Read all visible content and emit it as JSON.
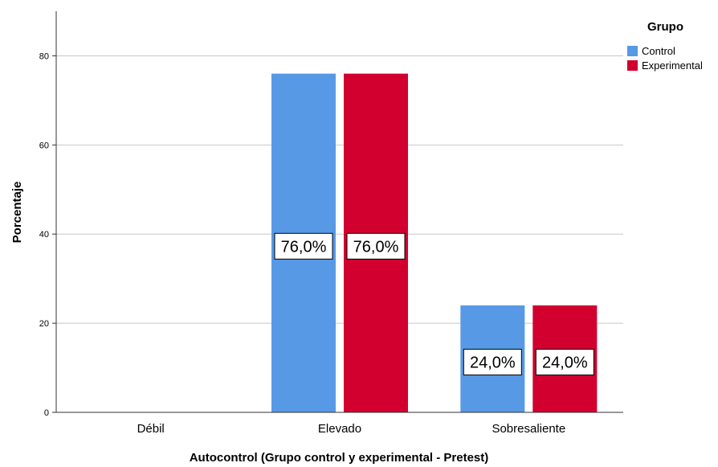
{
  "chart_data": {
    "type": "bar",
    "xlabel": "Autocontrol (Grupo control y experimental - Pretest)",
    "ylabel": "Porcentaje",
    "categories": [
      "Débil",
      "Elevado",
      "Sobresaliente"
    ],
    "series": [
      {
        "name": "Control",
        "color": "#5799e5",
        "values": [
          0,
          76.0,
          24.0
        ],
        "labels": [
          "",
          "76,0%",
          "24,0%"
        ]
      },
      {
        "name": "Experimental",
        "color": "#d1002f",
        "values": [
          0,
          76.0,
          24.0
        ],
        "labels": [
          "",
          "76,0%",
          "24,0%"
        ]
      }
    ],
    "ylim": [
      0,
      90
    ],
    "yticks": [
      0,
      20,
      40,
      60,
      80
    ],
    "grid": true,
    "legend": {
      "title": "Grupo",
      "position": "top-right"
    }
  }
}
